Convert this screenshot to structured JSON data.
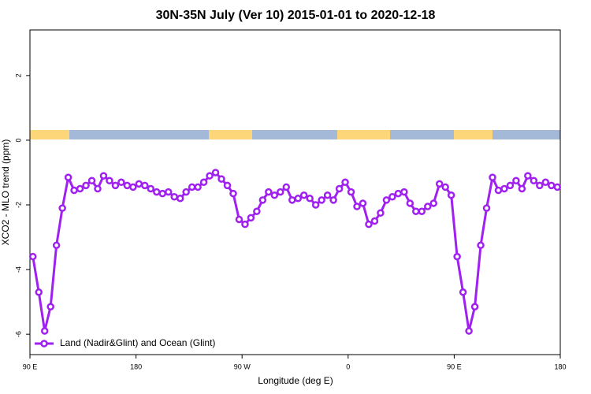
{
  "chart_data": {
    "type": "line",
    "title": "30N-35N July (Ver 10)   2015-01-01 to 2020-12-18",
    "x_label": "Longitude (deg E)",
    "y_label": "XCO2 - MLO trend (ppm)",
    "x": [
      92.5,
      97.5,
      102.5,
      107.5,
      112.5,
      117.5,
      122.5,
      127.5,
      132.5,
      137.5,
      142.5,
      147.5,
      152.5,
      157.5,
      162.5,
      167.5,
      172.5,
      177.5,
      182.5,
      187.5,
      192.5,
      197.5,
      202.5,
      207.5,
      212.5,
      217.5,
      222.5,
      227.5,
      232.5,
      237.5,
      242.5,
      247.5,
      252.5,
      257.5,
      262.5,
      267.5,
      272.5,
      277.5,
      282.5,
      287.5,
      292.5,
      297.5,
      302.5,
      307.5,
      312.5,
      317.5,
      322.5,
      327.5,
      332.5,
      337.5,
      342.5,
      347.5,
      352.5,
      357.5,
      362.5,
      367.5,
      372.5,
      377.5,
      382.5,
      387.5,
      392.5,
      397.5,
      402.5,
      407.5,
      412.5,
      417.5,
      422.5,
      427.5,
      432.5,
      437.5,
      442.5,
      447.5,
      452.5,
      457.5,
      462.5,
      467.5,
      472.5,
      477.5,
      482.5,
      487.5,
      492.5,
      497.5,
      502.5,
      507.5,
      512.5,
      517.5,
      522.5,
      527.5,
      532.5,
      537.5
    ],
    "series": [
      {
        "name": "Land (Nadir&Glint) and Ocean (Glint)",
        "color": "#a020f0",
        "values": [
          -3.6,
          -4.7,
          -5.9,
          -5.15,
          -3.25,
          -2.1,
          -1.15,
          -1.55,
          -1.5,
          -1.4,
          -1.25,
          -1.5,
          -1.1,
          -1.25,
          -1.4,
          -1.3,
          -1.4,
          -1.45,
          -1.35,
          -1.4,
          -1.5,
          -1.6,
          -1.65,
          -1.6,
          -1.75,
          -1.8,
          -1.6,
          -1.45,
          -1.45,
          -1.3,
          -1.1,
          -1.0,
          -1.2,
          -1.4,
          -1.65,
          -2.45,
          -2.6,
          -2.4,
          -2.2,
          -1.85,
          -1.6,
          -1.7,
          -1.6,
          -1.45,
          -1.85,
          -1.8,
          -1.7,
          -1.8,
          -2.0,
          -1.85,
          -1.7,
          -1.85,
          -1.5,
          -1.3,
          -1.6,
          -2.05,
          -1.95,
          -2.6,
          -2.5,
          -2.25,
          -1.85,
          -1.75,
          -1.65,
          -1.6,
          -1.95,
          -2.2,
          -2.2,
          -2.05,
          -1.95,
          -1.35,
          -1.45,
          -1.7,
          -3.6,
          -4.7,
          -5.9,
          -5.15,
          -3.25,
          -2.1,
          -1.15,
          -1.55,
          -1.5,
          -1.4,
          -1.25,
          -1.5,
          -1.1,
          -1.25,
          -1.4,
          -1.3,
          -1.4,
          -1.45
        ]
      }
    ],
    "xlim": [
      90,
      540
    ],
    "xticks": [
      {
        "value": 90,
        "label": "90 E"
      },
      180,
      {
        "value": 270,
        "label": "90 W"
      },
      {
        "value": 360,
        "label": "0"
      },
      {
        "value": 450,
        "label": "90 E"
      },
      {
        "value": 540,
        "label": "180"
      }
    ],
    "ylim": [
      -6.63,
      3.41
    ],
    "yticks": [
      -6,
      -4,
      -2,
      0,
      2
    ],
    "grid": false,
    "legend": "bottom-left"
  }
}
